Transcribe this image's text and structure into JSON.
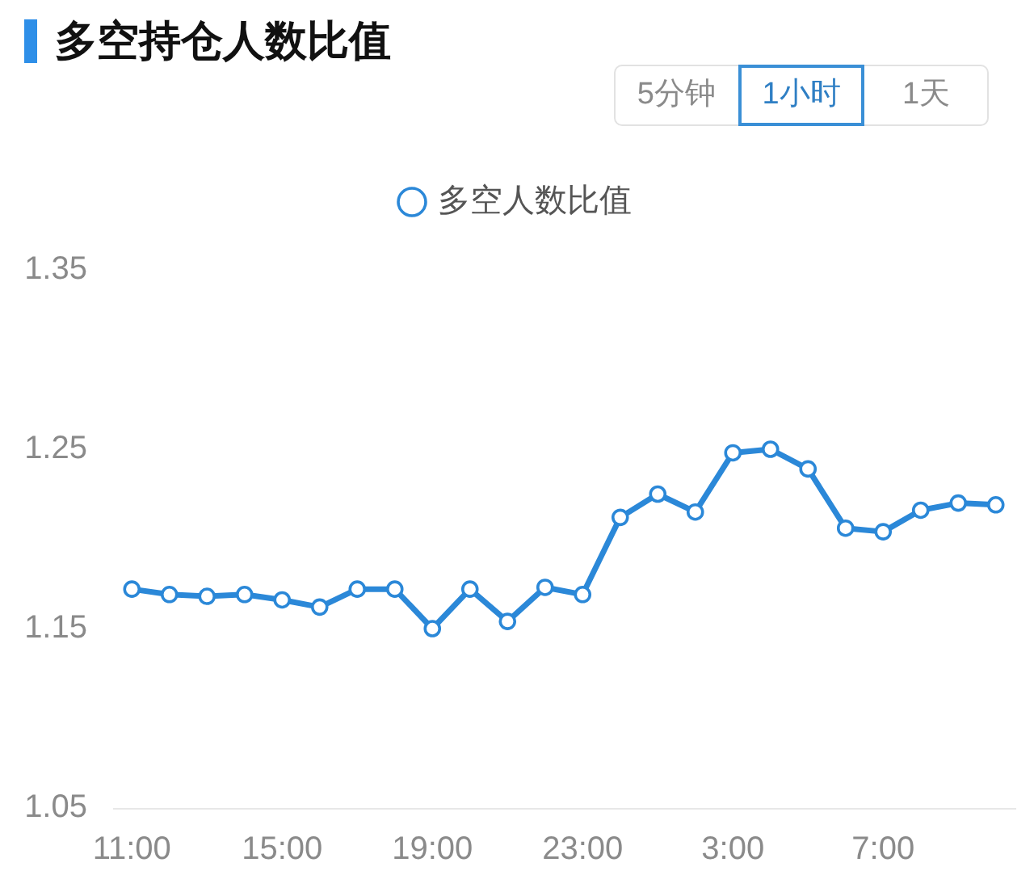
{
  "chart_data": {
    "type": "line",
    "title": "多空持仓人数比值",
    "annotations": [
      "5分钟",
      "1小时",
      "1天"
    ],
    "categories": [
      "11:00",
      null,
      null,
      null,
      "15:00",
      null,
      null,
      null,
      "19:00",
      null,
      null,
      null,
      "23:00",
      null,
      null,
      null,
      "3:00",
      null,
      null,
      null,
      "7:00",
      null,
      null,
      null
    ],
    "series": [
      {
        "name": "多空人数比值",
        "color": "#2b88d8",
        "values": [
          1.172,
          1.169,
          1.168,
          1.169,
          1.166,
          1.162,
          1.172,
          1.172,
          1.15,
          1.172,
          1.154,
          1.173,
          1.169,
          1.212,
          1.225,
          1.215,
          1.248,
          1.25,
          1.239,
          1.206,
          1.204,
          1.216,
          1.22,
          1.219
        ]
      }
    ],
    "ylim": [
      1.05,
      1.35
    ],
    "yticks": [
      1.05,
      1.15,
      1.25,
      1.35
    ],
    "grid": false,
    "legend": "top",
    "marker": "circle",
    "line_style": "solid"
  }
}
